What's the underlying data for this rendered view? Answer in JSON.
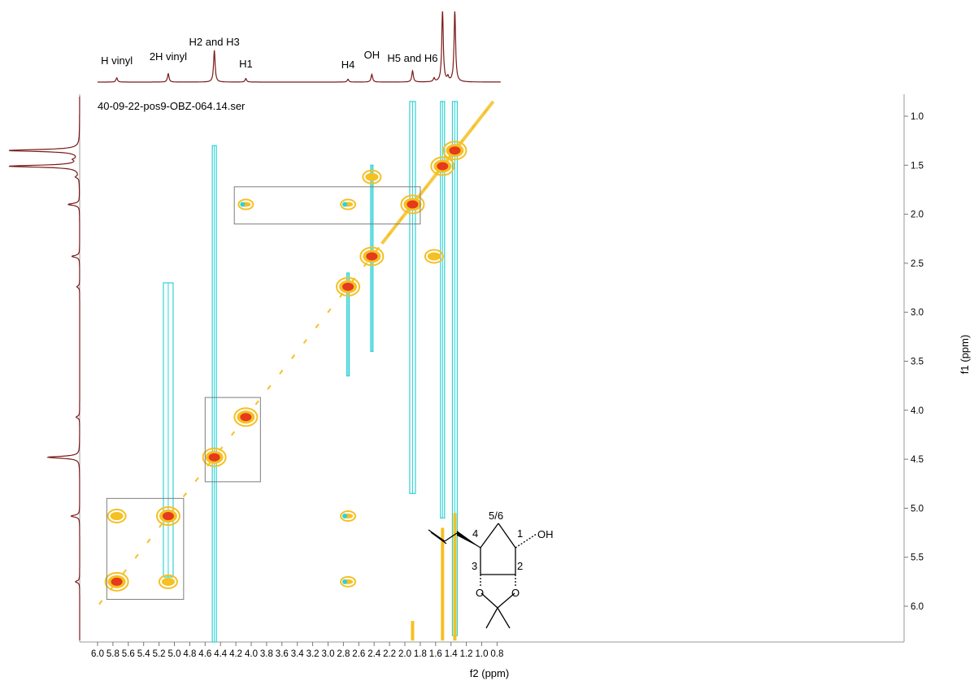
{
  "chart_data": {
    "type": "heatmap",
    "experiment": "2D NMR (COSY-type contour plot)",
    "title": "40-09-22-pos9-OBZ-064.14.ser",
    "xlabel": "f2 (ppm)",
    "ylabel": "f1 (ppm)",
    "xlim": [
      6.0,
      0.75
    ],
    "ylim": [
      0.8,
      6.35
    ],
    "x_ticks": [
      "6.0",
      "5.8",
      "5.6",
      "5.4",
      "5.2",
      "5.0",
      "4.8",
      "4.6",
      "4.4",
      "4.2",
      "4.0",
      "3.8",
      "3.6",
      "3.4",
      "3.2",
      "3.0",
      "2.8",
      "2.6",
      "2.4",
      "2.2",
      "2.0",
      "1.8",
      "1.6",
      "1.4",
      "1.2",
      "1.0",
      "0.8"
    ],
    "y_ticks": [
      "1.0",
      "1.5",
      "2.0",
      "2.5",
      "3.0",
      "3.5",
      "4.0",
      "4.5",
      "5.0",
      "5.5",
      "6.0"
    ],
    "peak_labels": [
      {
        "text": "H vinyl",
        "ppm": 5.75
      },
      {
        "text": "2H vinyl",
        "ppm": 5.08
      },
      {
        "text": "H2 and H3",
        "ppm": 4.48
      },
      {
        "text": "H1",
        "ppm": 4.07
      },
      {
        "text": "H4",
        "ppm": 2.74
      },
      {
        "text": "OH",
        "ppm": 2.43
      },
      {
        "text": "H5 and H6",
        "ppm": 1.9
      }
    ],
    "spectrum_1d_peaks": [
      {
        "ppm": 5.75,
        "height": 0.06
      },
      {
        "ppm": 5.08,
        "height": 0.12
      },
      {
        "ppm": 4.48,
        "height": 0.45
      },
      {
        "ppm": 4.07,
        "height": 0.05
      },
      {
        "ppm": 2.74,
        "height": 0.04
      },
      {
        "ppm": 2.43,
        "height": 0.11
      },
      {
        "ppm": 1.9,
        "height": 0.16
      },
      {
        "ppm": 1.62,
        "height": 0.05
      },
      {
        "ppm": 1.51,
        "height": 1.0
      },
      {
        "ppm": 1.44,
        "height": 0.06
      },
      {
        "ppm": 1.35,
        "height": 1.0
      }
    ],
    "diagonal_peaks": [
      {
        "x": 5.75,
        "y": 5.75,
        "intensity": "strong"
      },
      {
        "x": 5.08,
        "y": 5.08,
        "intensity": "strong"
      },
      {
        "x": 4.48,
        "y": 4.48,
        "intensity": "strong"
      },
      {
        "x": 4.07,
        "y": 4.07,
        "intensity": "strong"
      },
      {
        "x": 2.74,
        "y": 2.74,
        "intensity": "strong"
      },
      {
        "x": 2.43,
        "y": 2.43,
        "intensity": "strong"
      },
      {
        "x": 1.9,
        "y": 1.9,
        "intensity": "strong"
      },
      {
        "x": 1.51,
        "y": 1.51,
        "intensity": "strong"
      },
      {
        "x": 1.35,
        "y": 1.35,
        "intensity": "strong"
      }
    ],
    "cross_peaks": [
      {
        "x": 5.75,
        "y": 5.08,
        "intensity": "medium"
      },
      {
        "x": 5.08,
        "y": 5.75,
        "intensity": "medium"
      },
      {
        "x": 4.07,
        "y": 1.9,
        "intensity": "weak"
      },
      {
        "x": 2.74,
        "y": 1.9,
        "intensity": "weak"
      },
      {
        "x": 2.43,
        "y": 1.62,
        "intensity": "medium"
      },
      {
        "x": 1.62,
        "y": 2.43,
        "intensity": "medium"
      },
      {
        "x": 2.74,
        "y": 5.08,
        "intensity": "weak"
      },
      {
        "x": 2.74,
        "y": 5.75,
        "intensity": "weak"
      }
    ],
    "highlight_boxes": [
      {
        "x_range": [
          5.88,
          4.88
        ],
        "y_range": [
          4.9,
          5.93
        ]
      },
      {
        "x_range": [
          4.6,
          3.88
        ],
        "y_range": [
          3.87,
          4.73
        ]
      },
      {
        "x_range": [
          4.22,
          1.8
        ],
        "y_range": [
          1.72,
          2.1
        ]
      }
    ],
    "colors": {
      "positive": "#f5c023",
      "positive_core": "#e53a1c",
      "negative": "#2fd1d6",
      "spectrum": "#7a1a1a",
      "box": "#7d7d7d"
    }
  },
  "structure": {
    "labels": [
      "5/6",
      "1",
      "4",
      "2",
      "3",
      "OH",
      "O",
      "O"
    ]
  }
}
